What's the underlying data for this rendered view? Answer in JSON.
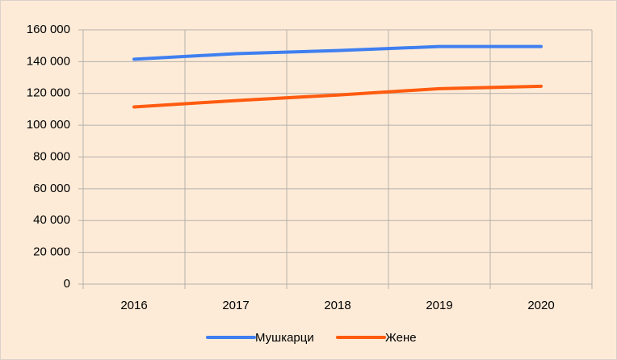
{
  "chart_data": {
    "type": "line",
    "categories": [
      "2016",
      "2017",
      "2018",
      "2019",
      "2020"
    ],
    "series": [
      {
        "name": "Мушкарци",
        "color": "#3f7ff0",
        "values": [
          141500,
          145000,
          147000,
          149500,
          149500
        ]
      },
      {
        "name": "Жене",
        "color": "#ff5b0f",
        "values": [
          111500,
          115500,
          119000,
          123000,
          124500
        ]
      }
    ],
    "ylim": [
      0,
      160000
    ],
    "yticks": [
      0,
      {
        "value": 20000,
        "label": "20 000"
      },
      {
        "value": 40000,
        "label": "40 000"
      },
      {
        "value": 60000,
        "label": "60 000"
      },
      {
        "value": 80000,
        "label": "80 000"
      },
      {
        "value": 100000,
        "label": "100 000"
      },
      {
        "value": 120000,
        "label": "120 000"
      },
      {
        "value": 140000,
        "label": "140 000"
      },
      {
        "value": 160000,
        "label": "160 000"
      }
    ],
    "grid": true,
    "legend": "bottom"
  }
}
